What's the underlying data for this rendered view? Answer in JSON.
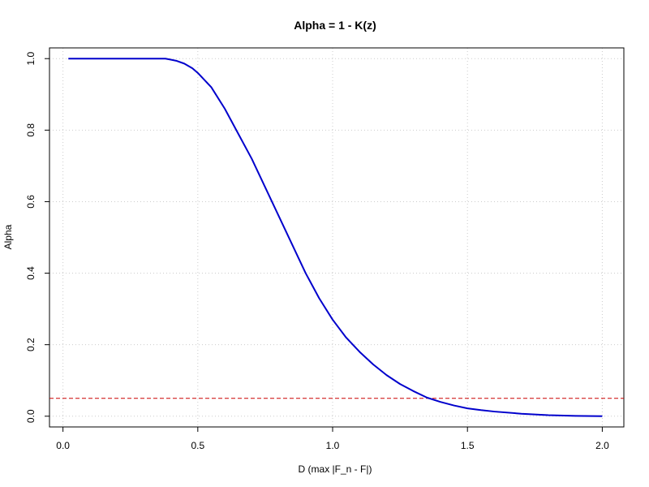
{
  "chart_data": {
    "type": "line",
    "title": "Alpha = 1 - K(z)",
    "xlabel": "D (max |F_n - F|)",
    "ylabel": "Alpha",
    "xlim": [
      -0.05,
      2.08
    ],
    "ylim": [
      -0.03,
      1.03
    ],
    "x_ticks": [
      "0.0",
      "0.5",
      "1.0",
      "1.5",
      "2.0"
    ],
    "y_ticks": [
      "0.0",
      "0.2",
      "0.4",
      "0.6",
      "0.8",
      "1.0"
    ],
    "grid": true,
    "series": [
      {
        "color": "#0000cc",
        "x": [
          0.02,
          0.1,
          0.2,
          0.3,
          0.35,
          0.38,
          0.4,
          0.42,
          0.45,
          0.48,
          0.5,
          0.55,
          0.6,
          0.65,
          0.7,
          0.75,
          0.8,
          0.85,
          0.9,
          0.95,
          1.0,
          1.05,
          1.1,
          1.15,
          1.2,
          1.25,
          1.3,
          1.35,
          1.4,
          1.45,
          1.5,
          1.55,
          1.6,
          1.7,
          1.8,
          1.9,
          2.0
        ],
        "y": [
          1.0,
          1.0,
          1.0,
          1.0,
          1.0,
          1.0,
          0.997,
          0.994,
          0.986,
          0.973,
          0.96,
          0.92,
          0.86,
          0.79,
          0.72,
          0.64,
          0.56,
          0.48,
          0.4,
          0.33,
          0.27,
          0.22,
          0.18,
          0.145,
          0.115,
          0.09,
          0.07,
          0.052,
          0.04,
          0.03,
          0.022,
          0.017,
          0.013,
          0.007,
          0.003,
          0.001,
          0.0
        ]
      }
    ],
    "reference_line": {
      "y": 0.05,
      "color": "#cc0000",
      "style": "dashed"
    }
  }
}
